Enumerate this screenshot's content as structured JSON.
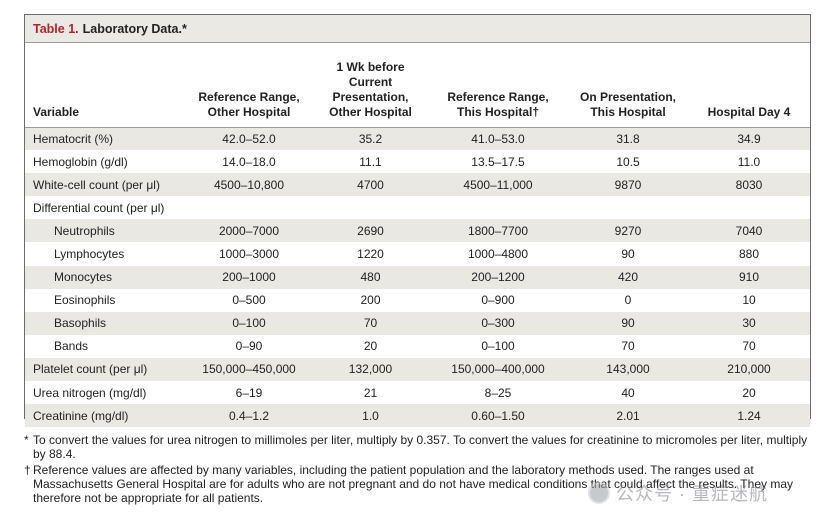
{
  "table": {
    "title_number": "Table 1.",
    "title_text": "Laboratory Data.*",
    "columns": {
      "variable": "Variable",
      "ref_other": [
        "Reference Range,",
        "Other Hospital"
      ],
      "wk_before": [
        "1 Wk before",
        "Current",
        "Presentation,",
        "Other Hospital"
      ],
      "ref_this": [
        "Reference Range,",
        "This Hospital†"
      ],
      "presentation": [
        "On Presentation,",
        "This Hospital"
      ],
      "day4": [
        "Hospital Day 4"
      ]
    },
    "rows": [
      {
        "label": "Hematocrit (%)",
        "ref_other": "42.0–52.0",
        "wk_before": "35.2",
        "ref_this": "41.0–53.0",
        "presentation": "31.8",
        "day4": "34.9"
      },
      {
        "label": "Hemoglobin (g/dl)",
        "ref_other": "14.0–18.0",
        "wk_before": "11.1",
        "ref_this": "13.5–17.5",
        "presentation": "10.5",
        "day4": "11.0"
      },
      {
        "label": "White-cell count (per μl)",
        "ref_other": "4500–10,800",
        "wk_before": "4700",
        "ref_this": "4500–11,000",
        "presentation": "9870",
        "day4": "8030"
      },
      {
        "label": "Differential count (per μl)",
        "ref_other": "",
        "wk_before": "",
        "ref_this": "",
        "presentation": "",
        "day4": ""
      },
      {
        "label": "Neutrophils",
        "sub": true,
        "ref_other": "2000–7000",
        "wk_before": "2690",
        "ref_this": "1800–7700",
        "presentation": "9270",
        "day4": "7040"
      },
      {
        "label": "Lymphocytes",
        "sub": true,
        "ref_other": "1000–3000",
        "wk_before": "1220",
        "ref_this": "1000–4800",
        "presentation": "90",
        "day4": "880"
      },
      {
        "label": "Monocytes",
        "sub": true,
        "ref_other": "200–1000",
        "wk_before": "480",
        "ref_this": "200–1200",
        "presentation": "420",
        "day4": "910"
      },
      {
        "label": "Eosinophils",
        "sub": true,
        "ref_other": "0–500",
        "wk_before": "200",
        "ref_this": "0–900",
        "presentation": "0",
        "day4": "10"
      },
      {
        "label": "Basophils",
        "sub": true,
        "ref_other": "0–100",
        "wk_before": "70",
        "ref_this": "0–300",
        "presentation": "90",
        "day4": "30"
      },
      {
        "label": "Bands",
        "sub": true,
        "ref_other": "0–90",
        "wk_before": "20",
        "ref_this": "0–100",
        "presentation": "70",
        "day4": "70"
      },
      {
        "label": "Platelet count (per μl)",
        "ref_other": "150,000–450,000",
        "wk_before": "132,000",
        "ref_this": "150,000–400,000",
        "presentation": "143,000",
        "day4": "210,000"
      },
      {
        "label": "Urea nitrogen (mg/dl)",
        "ref_other": "6–19",
        "wk_before": "21",
        "ref_this": "8–25",
        "presentation": "40",
        "day4": "20"
      },
      {
        "label": "Creatinine (mg/dl)",
        "ref_other": "0.4–1.2",
        "wk_before": "1.0",
        "ref_this": "0.60–1.50",
        "presentation": "2.01",
        "day4": "1.24"
      }
    ]
  },
  "footnotes": [
    {
      "mark": "*",
      "text": "To convert the values for urea nitrogen to millimoles per liter, multiply by 0.357. To convert the values for creatinine to micromoles per liter, multiply by 88.4."
    },
    {
      "mark": "†",
      "text": "Reference values are affected by many variables, including the patient population and the laboratory methods used. The ranges used at Massachusetts General Hospital are for adults who are not pregnant and do not have medical conditions that could affect the results. They may therefore not be appropriate for all patients."
    }
  ],
  "watermark": {
    "text": "公众号 · 重症迷航"
  },
  "colors": {
    "title_accent": "#b5232a",
    "row_shade": "#e9e8e3",
    "title_bar": "#eae9e4"
  }
}
